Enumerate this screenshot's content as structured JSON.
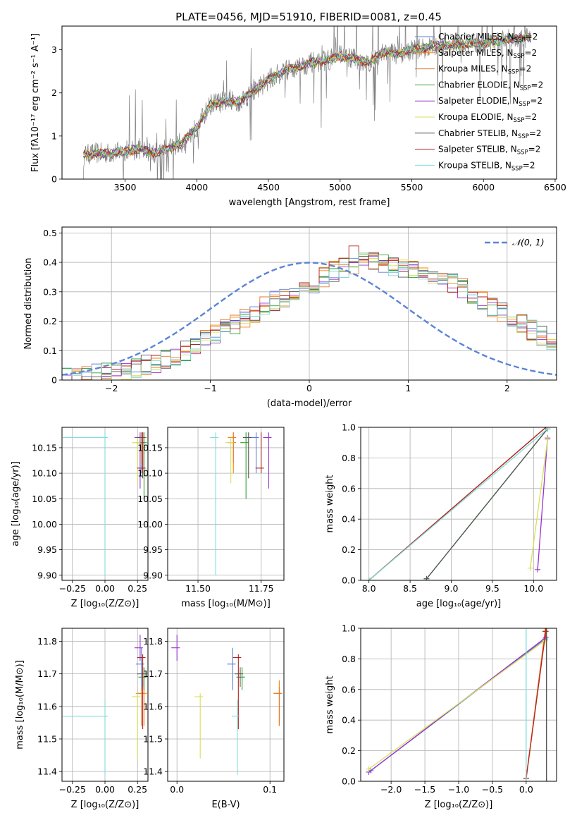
{
  "figure": {
    "title": "PLATE=0456, MJD=51910, FIBERID=0081, z=0.45"
  },
  "legend_entries": [
    {
      "label": "Chabrier MILES, N",
      "sub": "SSP",
      "suffix": "=2",
      "color": "#5a7fd6"
    },
    {
      "label": "Salpeter MILES, N",
      "sub": "SSP",
      "suffix": "=2",
      "color": "#ff7f0e"
    },
    {
      "label": "Kroupa MILES, N",
      "sub": "SSP",
      "suffix": "=2",
      "color": "#e07b2a"
    },
    {
      "label": "Chabrier ELODIE, N",
      "sub": "SSP",
      "suffix": "=2",
      "color": "#2ca02c"
    },
    {
      "label": "Salpeter ELODIE, N",
      "sub": "SSP",
      "suffix": "=2",
      "color": "#9a32cd"
    },
    {
      "label": "Kroupa ELODIE, N",
      "sub": "SSP",
      "suffix": "=2",
      "color": "#d4e157"
    },
    {
      "label": "Chabrier STELIB, N",
      "sub": "SSP",
      "suffix": "=2",
      "color": "#555555"
    },
    {
      "label": "Salpeter STELIB, N",
      "sub": "SSP",
      "suffix": "=2",
      "color": "#b22222"
    },
    {
      "label": "Kroupa STELIB, N",
      "sub": "SSP",
      "suffix": "=2",
      "color": "#7fdcdc"
    }
  ],
  "chart_data": [
    {
      "id": "spectrum",
      "type": "line",
      "xlabel": "wavelength [Angstrom, rest frame]",
      "ylabel": "Flux [fλ10⁻¹⁷ erg cm⁻² s⁻¹ A⁻¹]",
      "xlim": [
        3060,
        6510
      ],
      "ylim": [
        0,
        3.55
      ],
      "xticks": [
        3500,
        4000,
        4500,
        5000,
        5500,
        6000,
        6500
      ],
      "yticks": [
        0,
        1,
        2,
        3
      ],
      "data_range": [
        3200,
        6330
      ],
      "model_shape": [
        [
          3200,
          0.55
        ],
        [
          3300,
          0.6
        ],
        [
          3400,
          0.6
        ],
        [
          3500,
          0.65
        ],
        [
          3600,
          0.7
        ],
        [
          3700,
          0.6
        ],
        [
          3800,
          0.7
        ],
        [
          3900,
          0.85
        ],
        [
          4000,
          1.2
        ],
        [
          4100,
          1.75
        ],
        [
          4200,
          1.8
        ],
        [
          4300,
          1.8
        ],
        [
          4400,
          2.05
        ],
        [
          4500,
          2.3
        ],
        [
          4600,
          2.5
        ],
        [
          4700,
          2.6
        ],
        [
          4800,
          2.7
        ],
        [
          4900,
          2.75
        ],
        [
          5000,
          2.85
        ],
        [
          5100,
          2.8
        ],
        [
          5200,
          2.7
        ],
        [
          5300,
          2.95
        ],
        [
          5400,
          2.9
        ],
        [
          5500,
          3.0
        ],
        [
          5600,
          3.05
        ],
        [
          5700,
          3.1
        ],
        [
          5800,
          3.1
        ],
        [
          5900,
          3.15
        ],
        [
          6000,
          3.15
        ],
        [
          6100,
          3.2
        ],
        [
          6200,
          3.25
        ],
        [
          6330,
          3.3
        ]
      ],
      "data_color": "#808080"
    },
    {
      "id": "residuals",
      "type": "histogram",
      "xlabel": "(data-model)/error",
      "ylabel": "Normed distribution",
      "xlim": [
        -2.5,
        2.5
      ],
      "ylim": [
        0,
        0.52
      ],
      "xticks": [
        -2,
        -1,
        0,
        1,
        2
      ],
      "yticks": [
        0,
        0.1,
        0.2,
        0.3,
        0.4,
        0.5
      ],
      "bin_edges_start": -2.5,
      "bin_width": 0.1,
      "base_profile": [
        0.01,
        0.012,
        0.015,
        0.02,
        0.025,
        0.03,
        0.035,
        0.04,
        0.05,
        0.06,
        0.07,
        0.085,
        0.1,
        0.12,
        0.14,
        0.16,
        0.18,
        0.19,
        0.21,
        0.23,
        0.25,
        0.27,
        0.28,
        0.3,
        0.32,
        0.33,
        0.35,
        0.37,
        0.38,
        0.39,
        0.4,
        0.41,
        0.4,
        0.39,
        0.38,
        0.37,
        0.36,
        0.35,
        0.34,
        0.33,
        0.31,
        0.29,
        0.27,
        0.25,
        0.23,
        0.21,
        0.19,
        0.17,
        0.15,
        0.13
      ],
      "gaussian_label": "𝒩(0, 1)",
      "gaussian_color": "#5b84d6"
    },
    {
      "id": "age_vs_Z",
      "type": "scatter",
      "xlabel": "Z [log₁₀(Z/Z⊙)]",
      "ylabel": "age  [log₁₀(age/yr)]",
      "xlim": [
        -0.33,
        0.33
      ],
      "ylim": [
        9.89,
        10.19
      ],
      "xticks": [
        -0.25,
        0.0,
        0.25
      ],
      "xticklabels": [
        "−0.25",
        "0.00",
        "0.25"
      ],
      "yticks": [
        9.9,
        9.95,
        10.0,
        10.05,
        10.1,
        10.15
      ],
      "yticklabels": [
        "9.90",
        "9.95",
        "10.00",
        "10.05",
        "10.10",
        "10.15"
      ]
    },
    {
      "id": "age_vs_mass",
      "type": "scatter",
      "xlabel": "mass [log₁₀(M/M⊙)]",
      "ylabel": "",
      "xlim": [
        11.38,
        11.84
      ],
      "ylim": [
        9.89,
        10.19
      ],
      "xticks": [
        11.5,
        11.75
      ],
      "xticklabels": [
        "11.50",
        "11.75"
      ],
      "yticks": [
        9.9,
        9.95,
        10.0,
        10.05,
        10.1,
        10.15
      ],
      "yticklabels": [
        "9.90",
        "9.95",
        "10.00",
        "10.05",
        "10.10",
        "10.15"
      ]
    },
    {
      "id": "weight_vs_age",
      "type": "line",
      "xlabel": "age  [log₁₀(age/yr)]",
      "ylabel": "mass weight",
      "xlim": [
        7.9,
        10.28
      ],
      "ylim": [
        0,
        1
      ],
      "xticks": [
        8.0,
        8.5,
        9.0,
        9.5,
        10.0
      ],
      "xticklabels": [
        "8.0",
        "8.5",
        "9.0",
        "9.5",
        "10.0"
      ],
      "yticks": [
        0,
        0.2,
        0.4,
        0.6,
        0.8,
        1.0
      ],
      "yticklabels": [
        "0.0",
        "0.2",
        "0.4",
        "0.6",
        "0.8",
        "1.0"
      ]
    },
    {
      "id": "mass_vs_Z",
      "type": "scatter",
      "xlabel": "Z [log₁₀(Z/Z⊙)]",
      "ylabel": "mass [log₁₀(M/M⊙)]",
      "xlim": [
        -0.33,
        0.33
      ],
      "ylim": [
        11.37,
        11.84
      ],
      "xticks": [
        -0.25,
        0.0,
        0.25
      ],
      "xticklabels": [
        "−0.25",
        "0.00",
        "0.25"
      ],
      "yticks": [
        11.4,
        11.5,
        11.6,
        11.7,
        11.8
      ],
      "yticklabels": [
        "11.4",
        "11.5",
        "11.6",
        "11.7",
        "11.8"
      ]
    },
    {
      "id": "mass_vs_EBV",
      "type": "scatter",
      "xlabel": "E(B-V)",
      "ylabel": "",
      "xlim": [
        -0.01,
        0.115
      ],
      "ylim": [
        11.37,
        11.84
      ],
      "xticks": [
        0.0,
        0.1
      ],
      "xticklabels": [
        "0.0",
        "0.1"
      ],
      "yticks": [
        11.4,
        11.5,
        11.6,
        11.7,
        11.8
      ],
      "yticklabels": [
        "11.4",
        "11.5",
        "11.6",
        "11.7",
        "11.8"
      ]
    },
    {
      "id": "weight_vs_Z",
      "type": "line",
      "xlabel": "Z [log₁₀(Z/Z⊙)]",
      "ylabel": "mass weight",
      "xlim": [
        -2.45,
        0.45
      ],
      "ylim": [
        0,
        1
      ],
      "xticks": [
        -2.0,
        -1.5,
        -1.0,
        -0.5,
        0.0
      ],
      "xticklabels": [
        "−2.0",
        "−1.5",
        "−1.0",
        "−0.5",
        "0.0"
      ],
      "yticks": [
        0,
        0.2,
        0.4,
        0.6,
        0.8,
        1.0
      ],
      "yticklabels": [
        "0.0",
        "0.2",
        "0.4",
        "0.6",
        "0.8",
        "1.0"
      ]
    }
  ],
  "ssp_models": [
    {
      "name": "Chabrier MILES",
      "color": "#5a7fd6",
      "Z": 0.28,
      "age": 10.17,
      "age_err": [
        10.1,
        10.18
      ],
      "mass": 11.73,
      "mass_err": [
        11.65,
        11.78
      ],
      "ebv": 0.06,
      "w_age": [
        [
          8.0,
          0.0
        ],
        [
          10.15,
          1.0
        ]
      ],
      "w_Z": [
        [
          -2.3,
          0.07
        ],
        [
          0.28,
          0.93
        ]
      ]
    },
    {
      "name": "Salpeter MILES",
      "color": "#ff7f0e",
      "Z": 0.3,
      "age": 10.17,
      "age_err": [
        10.1,
        10.18
      ],
      "mass": 11.64,
      "mass_err": [
        11.54,
        11.68
      ],
      "ebv": 0.11,
      "w_age": [
        [
          8.0,
          0.0
        ],
        [
          10.15,
          1.0
        ]
      ],
      "w_Z": [
        [
          0.0,
          0.02
        ],
        [
          0.28,
          0.98
        ]
      ]
    },
    {
      "name": "Kroupa MILES",
      "color": "#e07b2a",
      "Z": 0.28,
      "age": 10.16,
      "age_err": [
        10.12,
        10.18
      ],
      "mass": 11.64,
      "mass_err": [
        11.54,
        11.66
      ],
      "ebv": 0.11,
      "w_age": [
        [
          8.0,
          0.0
        ],
        [
          10.15,
          1.0
        ]
      ],
      "w_Z": [
        [
          0.0,
          0.02
        ],
        [
          0.28,
          0.98
        ]
      ]
    },
    {
      "name": "Chabrier ELODIE",
      "color": "#2ca02c",
      "Z": 0.3,
      "age": 10.16,
      "age_err": [
        10.05,
        10.18
      ],
      "mass": 11.69,
      "mass_err": [
        11.65,
        11.72
      ],
      "ebv": 0.07,
      "w_age": [
        [
          8.7,
          0.01
        ],
        [
          10.17,
          0.99
        ]
      ],
      "w_Z": [
        [
          0.3,
          0.0
        ],
        [
          0.3,
          1.0
        ]
      ]
    },
    {
      "name": "Salpeter ELODIE",
      "color": "#9a32cd",
      "Z": 0.27,
      "age": 10.17,
      "age_err": [
        10.07,
        10.18
      ],
      "mass": 11.78,
      "mass_err": [
        11.74,
        11.82
      ],
      "ebv": 0.0,
      "w_age": [
        [
          10.05,
          0.07
        ],
        [
          10.17,
          0.93
        ]
      ],
      "w_Z": [
        [
          -2.33,
          0.06
        ],
        [
          0.29,
          0.94
        ]
      ]
    },
    {
      "name": "Kroupa ELODIE",
      "color": "#d4e157",
      "Z": 0.25,
      "age": 10.16,
      "age_err": [
        10.08,
        10.17
      ],
      "mass": 11.63,
      "mass_err": [
        11.44,
        11.64
      ],
      "ebv": 0.025,
      "w_age": [
        [
          9.96,
          0.08
        ],
        [
          10.17,
          0.92
        ]
      ],
      "w_Z": [
        [
          -2.33,
          0.08
        ],
        [
          0.28,
          0.92
        ]
      ]
    },
    {
      "name": "Chabrier STELIB",
      "color": "#555555",
      "Z": 0.29,
      "age": 10.17,
      "age_err": [
        10.09,
        10.18
      ],
      "mass": 11.7,
      "mass_err": [
        11.66,
        11.72
      ],
      "ebv": 0.068,
      "w_age": [
        [
          8.7,
          0.01
        ],
        [
          10.17,
          0.99
        ]
      ],
      "w_Z": [
        [
          0.3,
          0.0
        ],
        [
          0.3,
          1.0
        ]
      ]
    },
    {
      "name": "Salpeter STELIB",
      "color": "#b22222",
      "Z": 0.29,
      "age": 10.11,
      "age_err": [
        10.1,
        10.18
      ],
      "mass": 11.75,
      "mass_err": [
        11.53,
        11.76
      ],
      "ebv": 0.066,
      "w_age": [
        [
          8.0,
          0.0
        ],
        [
          10.15,
          1.0
        ]
      ],
      "w_Z": [
        [
          0.0,
          0.02
        ],
        [
          0.29,
          0.98
        ]
      ]
    },
    {
      "name": "Kroupa STELIB",
      "color": "#7fdcdc",
      "Z": 0.0,
      "age": 10.17,
      "age_err": [
        9.9,
        10.18
      ],
      "mass": 11.57,
      "mass_err": [
        11.39,
        11.62
      ],
      "ebv": 0.065,
      "w_age": [
        [
          8.0,
          0.0
        ],
        [
          10.17,
          0.99
        ]
      ],
      "w_Z": [
        [
          0.0,
          0.0
        ],
        [
          0.0,
          1.0
        ]
      ]
    }
  ]
}
